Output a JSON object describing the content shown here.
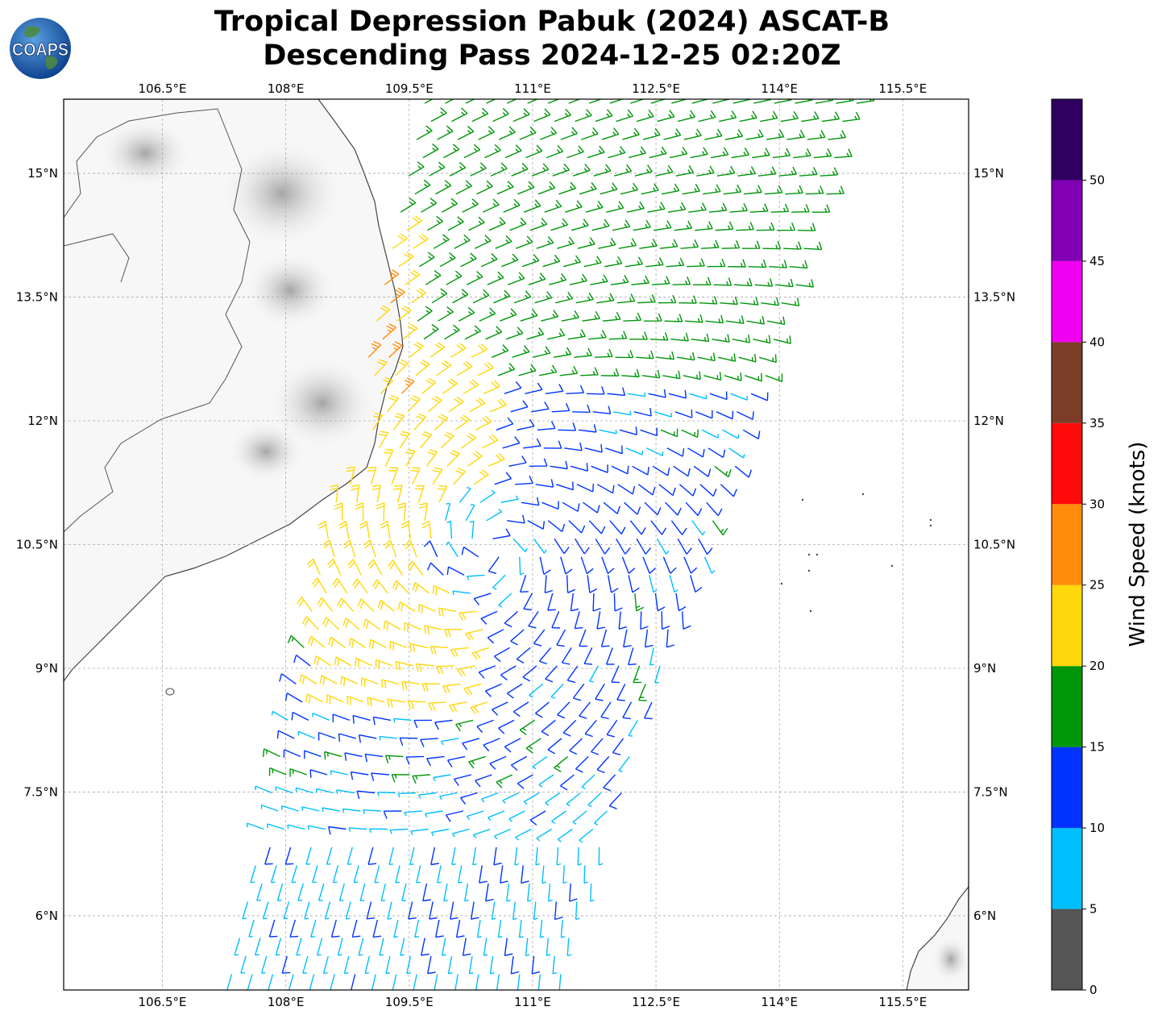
{
  "title": {
    "line1": "Tropical Depression Pabuk (2024) ASCAT-B",
    "line2": "Descending Pass 2024-12-25 02:20Z"
  },
  "logo": {
    "text": "COAPS",
    "icon": "globe-icon"
  },
  "map": {
    "lon_range": [
      105.3,
      116.3
    ],
    "lat_range": [
      5.1,
      15.9
    ],
    "lon_ticks": [
      106.5,
      108,
      109.5,
      111,
      112.5,
      114,
      115.5
    ],
    "lon_labels": [
      "106.5°E",
      "108°E",
      "109.5°E",
      "111°E",
      "112.5°E",
      "114°E",
      "115.5°E"
    ],
    "lat_ticks": [
      15,
      13.5,
      12,
      10.5,
      9,
      7.5,
      6
    ],
    "lat_labels": [
      "15°N",
      "13.5°N",
      "12°N",
      "10.5°N",
      "9°N",
      "7.5°N",
      "6°N"
    ],
    "gridlines": true,
    "storm_center": {
      "lon": 110.5,
      "lat": 10.5
    },
    "swath_corners": [
      [
        109.7,
        15.9
      ],
      [
        115.0,
        15.9
      ],
      [
        111.3,
        5.1
      ],
      [
        107.3,
        5.1
      ]
    ]
  },
  "colorbar": {
    "label": "Wind Speed (knots)",
    "tick_values": [
      0,
      5,
      10,
      15,
      20,
      25,
      30,
      35,
      40,
      45,
      50
    ],
    "tick_labels": [
      "0",
      "5",
      "10",
      "15",
      "20",
      "25",
      "30",
      "35",
      "40",
      "45",
      "50"
    ],
    "bins": [
      {
        "min": 0,
        "max": 5,
        "color": "#555555"
      },
      {
        "min": 5,
        "max": 10,
        "color": "#00bfff"
      },
      {
        "min": 10,
        "max": 15,
        "color": "#0033ff"
      },
      {
        "min": 15,
        "max": 20,
        "color": "#00960a"
      },
      {
        "min": 20,
        "max": 25,
        "color": "#ffd70a"
      },
      {
        "min": 25,
        "max": 30,
        "color": "#ff8c0a"
      },
      {
        "min": 30,
        "max": 35,
        "color": "#ff0a0a"
      },
      {
        "min": 35,
        "max": 40,
        "color": "#7d3c28"
      },
      {
        "min": 40,
        "max": 45,
        "color": "#f000f0"
      },
      {
        "min": 45,
        "max": 50,
        "color": "#8200b4"
      },
      {
        "min": 50,
        "max": 55,
        "color": "#300060"
      }
    ]
  }
}
